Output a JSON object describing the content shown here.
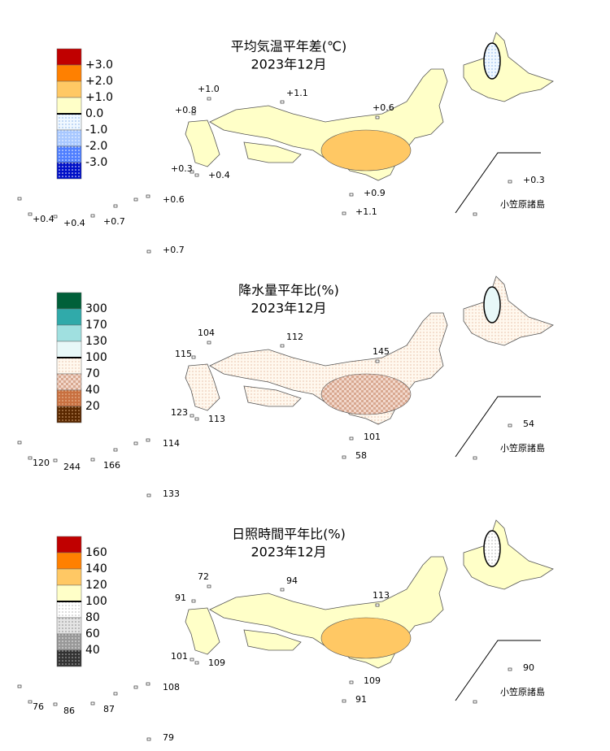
{
  "panels": [
    {
      "title": "平均気温平年差(℃)",
      "subtitle": "2023年12月",
      "legend": [
        "+3.0",
        "+2.0",
        "+1.0",
        "0.0",
        "-1.0",
        "-2.0",
        "-3.0"
      ],
      "stations": [
        "+1.0",
        "+1.1",
        "+0.8",
        "+0.6",
        "+0.3",
        "+0.4",
        "+0.9",
        "+1.1",
        "+0.6",
        "+0.4",
        "+0.4",
        "+0.7",
        "+0.7",
        "+0.3"
      ],
      "island_label": "小笠原諸島"
    },
    {
      "title": "降水量平年比(%)",
      "subtitle": "2023年12月",
      "legend": [
        "300",
        "170",
        "130",
        "100",
        "70",
        "40",
        "20"
      ],
      "stations": [
        "104",
        "112",
        "115",
        "145",
        "123",
        "113",
        "101",
        "58",
        "114",
        "120",
        "244",
        "166",
        "133",
        "54"
      ],
      "island_label": "小笠原諸島"
    },
    {
      "title": "日照時間平年比(%)",
      "subtitle": "2023年12月",
      "legend": [
        "160",
        "140",
        "120",
        "100",
        "80",
        "60",
        "40"
      ],
      "stations": [
        "72",
        "94",
        "91",
        "113",
        "101",
        "109",
        "109",
        "91",
        "108",
        "76",
        "86",
        "87",
        "79",
        "90"
      ],
      "island_label": "小笠原諸島"
    }
  ]
}
